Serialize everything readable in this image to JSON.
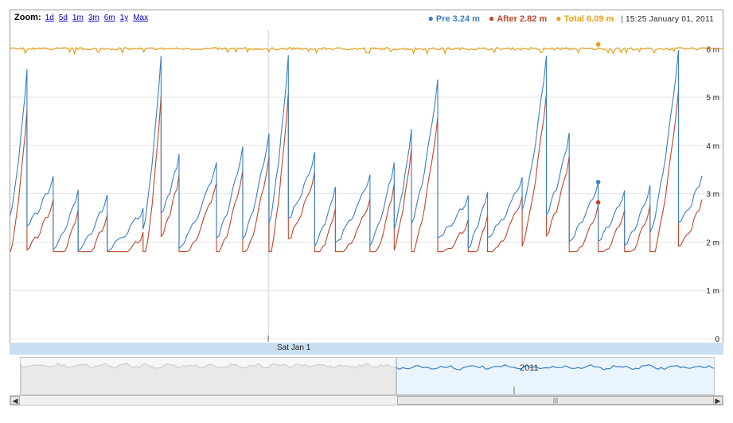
{
  "zoom": {
    "label": "Zoom:",
    "options": [
      "1d",
      "5d",
      "1m",
      "3m",
      "6m",
      "1y",
      "Max"
    ]
  },
  "legend": {
    "items": [
      {
        "name": "Pre",
        "value": "3.24 m",
        "color": "#3b7fc4"
      },
      {
        "name": "After",
        "value": "2.82 m",
        "color": "#c0462a"
      },
      {
        "name": "Total",
        "value": "6.09 m",
        "color": "#e8a01c"
      }
    ],
    "separator": "|",
    "timestamp": "15:25 January 01, 2011"
  },
  "date_label": "Sat Jan 1",
  "navigator": {
    "year_label": "2011",
    "thumb_grip": "|||"
  },
  "scrollbar": {
    "left_arrow": "◀",
    "right_arrow": "▶"
  },
  "chart_data": {
    "type": "line",
    "y_axis": {
      "ticks": [
        0,
        1,
        2,
        3,
        4,
        5,
        6
      ],
      "tick_labels": [
        "0",
        "1 m",
        "2 m",
        "3 m",
        "4 m",
        "5 m",
        "6 m"
      ],
      "range": [
        0,
        6.4
      ],
      "position": "right"
    },
    "x_axis": {
      "range": [
        0,
        1
      ],
      "marker_label": "Sat Jan 1",
      "marker_at": 0.373
    },
    "grid": true,
    "hover": {
      "x": 0.85,
      "pre": 3.24,
      "after": 2.82,
      "total": 6.09
    },
    "series": [
      {
        "name": "Pre",
        "color": "#3b7fc4",
        "role": "pre"
      },
      {
        "name": "After",
        "color": "#c0462a",
        "role": "after"
      },
      {
        "name": "Total",
        "color": "#e8a01c",
        "role": "total",
        "level": 6.0
      }
    ],
    "cycles": [
      {
        "start": 0.0,
        "end": 0.024,
        "low": 2.6,
        "high": 5.5
      },
      {
        "start": 0.024,
        "end": 0.062,
        "low": 2.35,
        "high": 3.3
      },
      {
        "start": 0.062,
        "end": 0.098,
        "low": 1.85,
        "high": 3.0
      },
      {
        "start": 0.098,
        "end": 0.14,
        "low": 1.85,
        "high": 2.9
      },
      {
        "start": 0.14,
        "end": 0.192,
        "low": 1.85,
        "high": 2.65
      },
      {
        "start": 0.192,
        "end": 0.218,
        "low": 2.3,
        "high": 5.8
      },
      {
        "start": 0.218,
        "end": 0.244,
        "low": 2.6,
        "high": 3.75
      },
      {
        "start": 0.244,
        "end": 0.298,
        "low": 1.9,
        "high": 3.6
      },
      {
        "start": 0.298,
        "end": 0.336,
        "low": 2.1,
        "high": 3.9
      },
      {
        "start": 0.336,
        "end": 0.374,
        "low": 2.1,
        "high": 4.2
      },
      {
        "start": 0.374,
        "end": 0.402,
        "low": 2.4,
        "high": 5.8
      },
      {
        "start": 0.402,
        "end": 0.44,
        "low": 2.5,
        "high": 3.8
      },
      {
        "start": 0.44,
        "end": 0.47,
        "low": 1.95,
        "high": 3.1
      },
      {
        "start": 0.47,
        "end": 0.52,
        "low": 2.0,
        "high": 3.35
      },
      {
        "start": 0.52,
        "end": 0.555,
        "low": 1.95,
        "high": 3.6
      },
      {
        "start": 0.555,
        "end": 0.58,
        "low": 2.3,
        "high": 4.3
      },
      {
        "start": 0.58,
        "end": 0.618,
        "low": 2.4,
        "high": 5.3
      },
      {
        "start": 0.618,
        "end": 0.662,
        "low": 2.1,
        "high": 2.9
      },
      {
        "start": 0.662,
        "end": 0.69,
        "low": 1.9,
        "high": 3.0
      },
      {
        "start": 0.69,
        "end": 0.74,
        "low": 2.1,
        "high": 3.3
      },
      {
        "start": 0.74,
        "end": 0.775,
        "low": 2.7,
        "high": 5.8
      },
      {
        "start": 0.775,
        "end": 0.808,
        "low": 2.6,
        "high": 4.2
      },
      {
        "start": 0.808,
        "end": 0.85,
        "low": 2.05,
        "high": 3.2
      },
      {
        "start": 0.85,
        "end": 0.888,
        "low": 2.05,
        "high": 3.0
      },
      {
        "start": 0.888,
        "end": 0.925,
        "low": 1.95,
        "high": 3.1
      },
      {
        "start": 0.925,
        "end": 0.966,
        "low": 2.2,
        "high": 5.9
      },
      {
        "start": 0.966,
        "end": 1.0,
        "low": 2.4,
        "high": 3.3
      }
    ]
  }
}
